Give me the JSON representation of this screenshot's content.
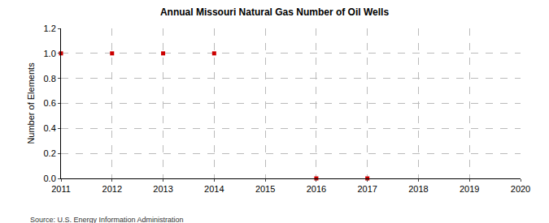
{
  "chart_data": {
    "type": "scatter",
    "title": "Annual Missouri Natural Gas Number of Oil Wells",
    "y_label": "Number of Elements",
    "source": "Source: U.S. Energy Information Administration",
    "x": [
      2011,
      2012,
      2013,
      2014,
      2016,
      2017
    ],
    "values": [
      1,
      1,
      1,
      1,
      0,
      0
    ],
    "color": "#cc0000",
    "marker": "square",
    "xlim": [
      2011,
      2020
    ],
    "xticks": [
      2011,
      2012,
      2013,
      2014,
      2015,
      2016,
      2017,
      2018,
      2019,
      2020
    ],
    "ylim": [
      0,
      1.2
    ],
    "yticks": [
      {
        "value": 0,
        "label": "0.0"
      },
      0.2,
      0.4,
      0.6,
      0.8,
      {
        "value": 1,
        "label": "1.0"
      },
      1.2
    ],
    "grid": true
  }
}
